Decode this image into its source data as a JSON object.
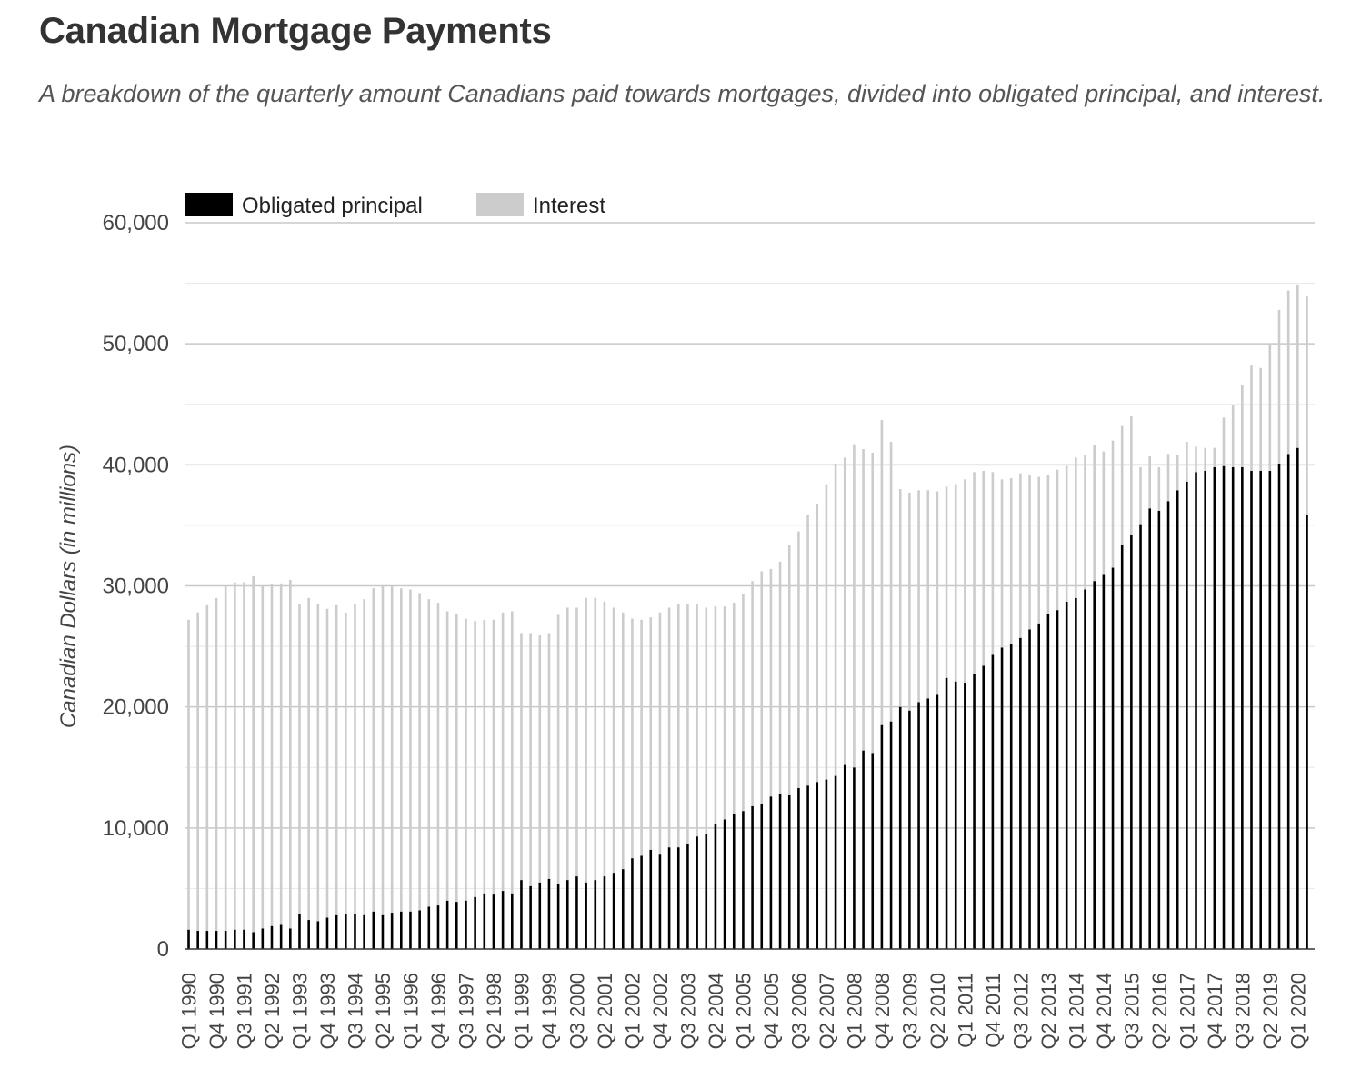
{
  "title": "Canadian Mortgage Payments",
  "subtitle": "A breakdown of the quarterly amount Canadians paid towards mortgages, divided into obligated principal, and interest.",
  "chart_data": {
    "type": "bar",
    "title": "Canadian Mortgage Payments",
    "subtitle": "A breakdown of the quarterly amount Canadians paid towards mortgages, divided into obligated principal, and interest.",
    "xlabel": "",
    "ylabel": "Canadian Dollars (in millions)",
    "ylim": [
      0,
      60000
    ],
    "yticks": [
      0,
      10000,
      20000,
      30000,
      40000,
      50000,
      60000
    ],
    "ytick_labels": [
      "0",
      "10,000",
      "20,000",
      "30,000",
      "40,000",
      "50,000",
      "60,000"
    ],
    "grid": true,
    "legend_position": "top-left",
    "x_start": "Q1 1990",
    "x_end": "Q4 2020",
    "x_tick_labels": [
      "Q1 1990",
      "Q4 1990",
      "Q3 1991",
      "Q2 1992",
      "Q1 1993",
      "Q4 1993",
      "Q3 1994",
      "Q2 1995",
      "Q1 1996",
      "Q4 1996",
      "Q3 1997",
      "Q2 1998",
      "Q1 1999",
      "Q4 1999",
      "Q3 2000",
      "Q2 2001",
      "Q1 2002",
      "Q4 2002",
      "Q3 2003",
      "Q2 2004",
      "Q1 2005",
      "Q4 2005",
      "Q3 2006",
      "Q2 2007",
      "Q1 2008",
      "Q4 2008",
      "Q3 2009",
      "Q2 2010",
      "Q1 2011",
      "Q4 2011",
      "Q3 2012",
      "Q2 2013",
      "Q1 2014",
      "Q4 2014",
      "Q3 2015",
      "Q2 2016",
      "Q1 2017",
      "Q4 2017",
      "Q3 2018",
      "Q2 2019",
      "Q1 2020"
    ],
    "series": [
      {
        "name": "Obligated principal",
        "color": "#000000",
        "values": [
          1600,
          1500,
          1500,
          1500,
          1500,
          1600,
          1600,
          1400,
          1700,
          1900,
          2000,
          1700,
          2900,
          2400,
          2300,
          2600,
          2800,
          2900,
          2900,
          2800,
          3100,
          2800,
          3000,
          3100,
          3100,
          3200,
          3500,
          3600,
          4000,
          3900,
          4000,
          4300,
          4600,
          4500,
          4800,
          4600,
          5700,
          5200,
          5500,
          5800,
          5400,
          5700,
          6000,
          5500,
          5700,
          6000,
          6300,
          6600,
          7500,
          7700,
          8200,
          7800,
          8400,
          8400,
          8700,
          9300,
          9500,
          10300,
          10700,
          11200,
          11400,
          11800,
          12000,
          12600,
          12800,
          12700,
          13300,
          13500,
          13800,
          14000,
          14300,
          15200,
          15000,
          16400,
          16200,
          18500,
          18800,
          20000,
          19700,
          20400,
          20700,
          21000,
          22400,
          22100,
          22000,
          22700,
          23400,
          24300,
          24900,
          25200,
          25700,
          26400,
          26900,
          27700,
          28000,
          28700,
          29000,
          29700,
          30400,
          30900,
          31500,
          33400,
          34200,
          35100,
          36400,
          36200,
          37000,
          37900,
          38600,
          39400,
          39500,
          39800,
          39900,
          39800,
          39800,
          39500,
          39500,
          39500,
          40100,
          40900,
          41400,
          35900
        ]
      },
      {
        "name": "Interest",
        "color": "#cccccc",
        "values": [
          25600,
          26300,
          26900,
          27500,
          28500,
          28700,
          28700,
          29400,
          28300,
          28300,
          28200,
          28800,
          25600,
          26600,
          26200,
          25500,
          25600,
          24900,
          25600,
          26100,
          26700,
          27200,
          27000,
          26700,
          26600,
          26200,
          25400,
          25000,
          23900,
          23800,
          23300,
          22800,
          22600,
          22700,
          23000,
          23300,
          20400,
          20900,
          20400,
          20300,
          22200,
          22500,
          22200,
          23500,
          23300,
          22700,
          21900,
          21200,
          19800,
          19500,
          19200,
          20000,
          19800,
          20100,
          19800,
          19200,
          18700,
          18000,
          17600,
          17400,
          17900,
          18600,
          19200,
          18800,
          19200,
          20700,
          21200,
          22400,
          23000,
          24400,
          25800,
          25400,
          26700,
          24900,
          24800,
          25200,
          23100,
          18000,
          18000,
          17500,
          17200,
          16800,
          15800,
          16300,
          16800,
          16700,
          16100,
          15100,
          13900,
          13700,
          13600,
          12800,
          12100,
          11500,
          11600,
          11200,
          11600,
          11100,
          11200,
          10200,
          10500,
          9800,
          9800,
          4700,
          4300,
          3600,
          3900,
          2900,
          3300,
          2100,
          1900,
          1600,
          4000,
          5100,
          6800,
          8700,
          8500,
          10500,
          12700,
          13500,
          13500,
          18000
        ]
      }
    ]
  }
}
